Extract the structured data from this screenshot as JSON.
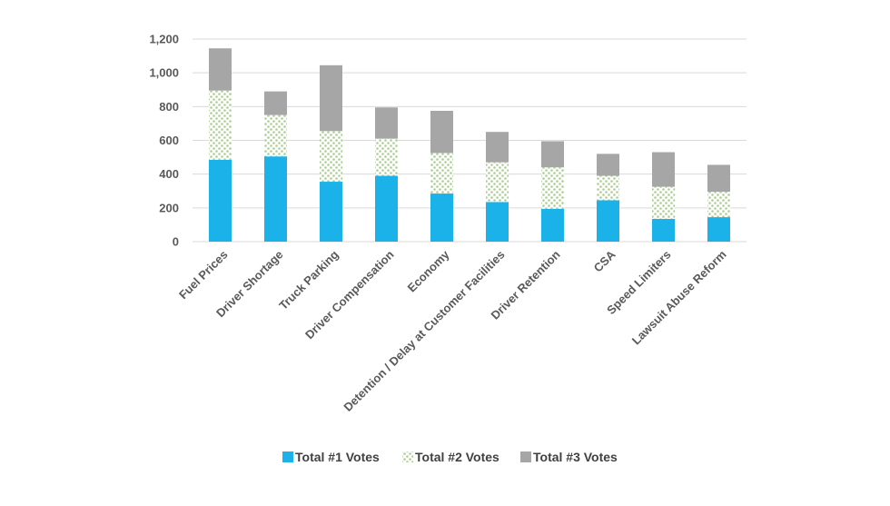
{
  "chart_data": {
    "type": "bar",
    "stacked": true,
    "title": "",
    "xlabel": "",
    "ylabel": "",
    "ylim": [
      0,
      1200
    ],
    "yticks": [
      0,
      200,
      400,
      600,
      800,
      1000,
      1200
    ],
    "ytick_labels": [
      "0",
      "200",
      "400",
      "600",
      "800",
      "1,000",
      "1,200"
    ],
    "grid": true,
    "legend_position": "bottom",
    "categories": [
      "Fuel Prices",
      "Driver Shortage",
      "Truck Parking",
      "Driver Compensation",
      "Economy",
      "Detention / Delay at Customer Facilities",
      "Driver Retention",
      "CSA",
      "Speed Limiters",
      "Lawsuit Abuse Reform"
    ],
    "series": [
      {
        "name": "Total #1 Votes",
        "color": "#1ab2e8",
        "pattern": "solid",
        "values": [
          485,
          505,
          355,
          390,
          285,
          235,
          195,
          245,
          135,
          145
        ]
      },
      {
        "name": "Total #2 Votes",
        "color": "#a9d18e",
        "pattern": "dotted",
        "values": [
          410,
          245,
          300,
          220,
          240,
          235,
          245,
          145,
          190,
          150
        ]
      },
      {
        "name": "Total #3 Votes",
        "color": "#a6a6a6",
        "pattern": "solid",
        "values": [
          250,
          140,
          390,
          185,
          250,
          180,
          155,
          130,
          205,
          160
        ]
      }
    ]
  }
}
